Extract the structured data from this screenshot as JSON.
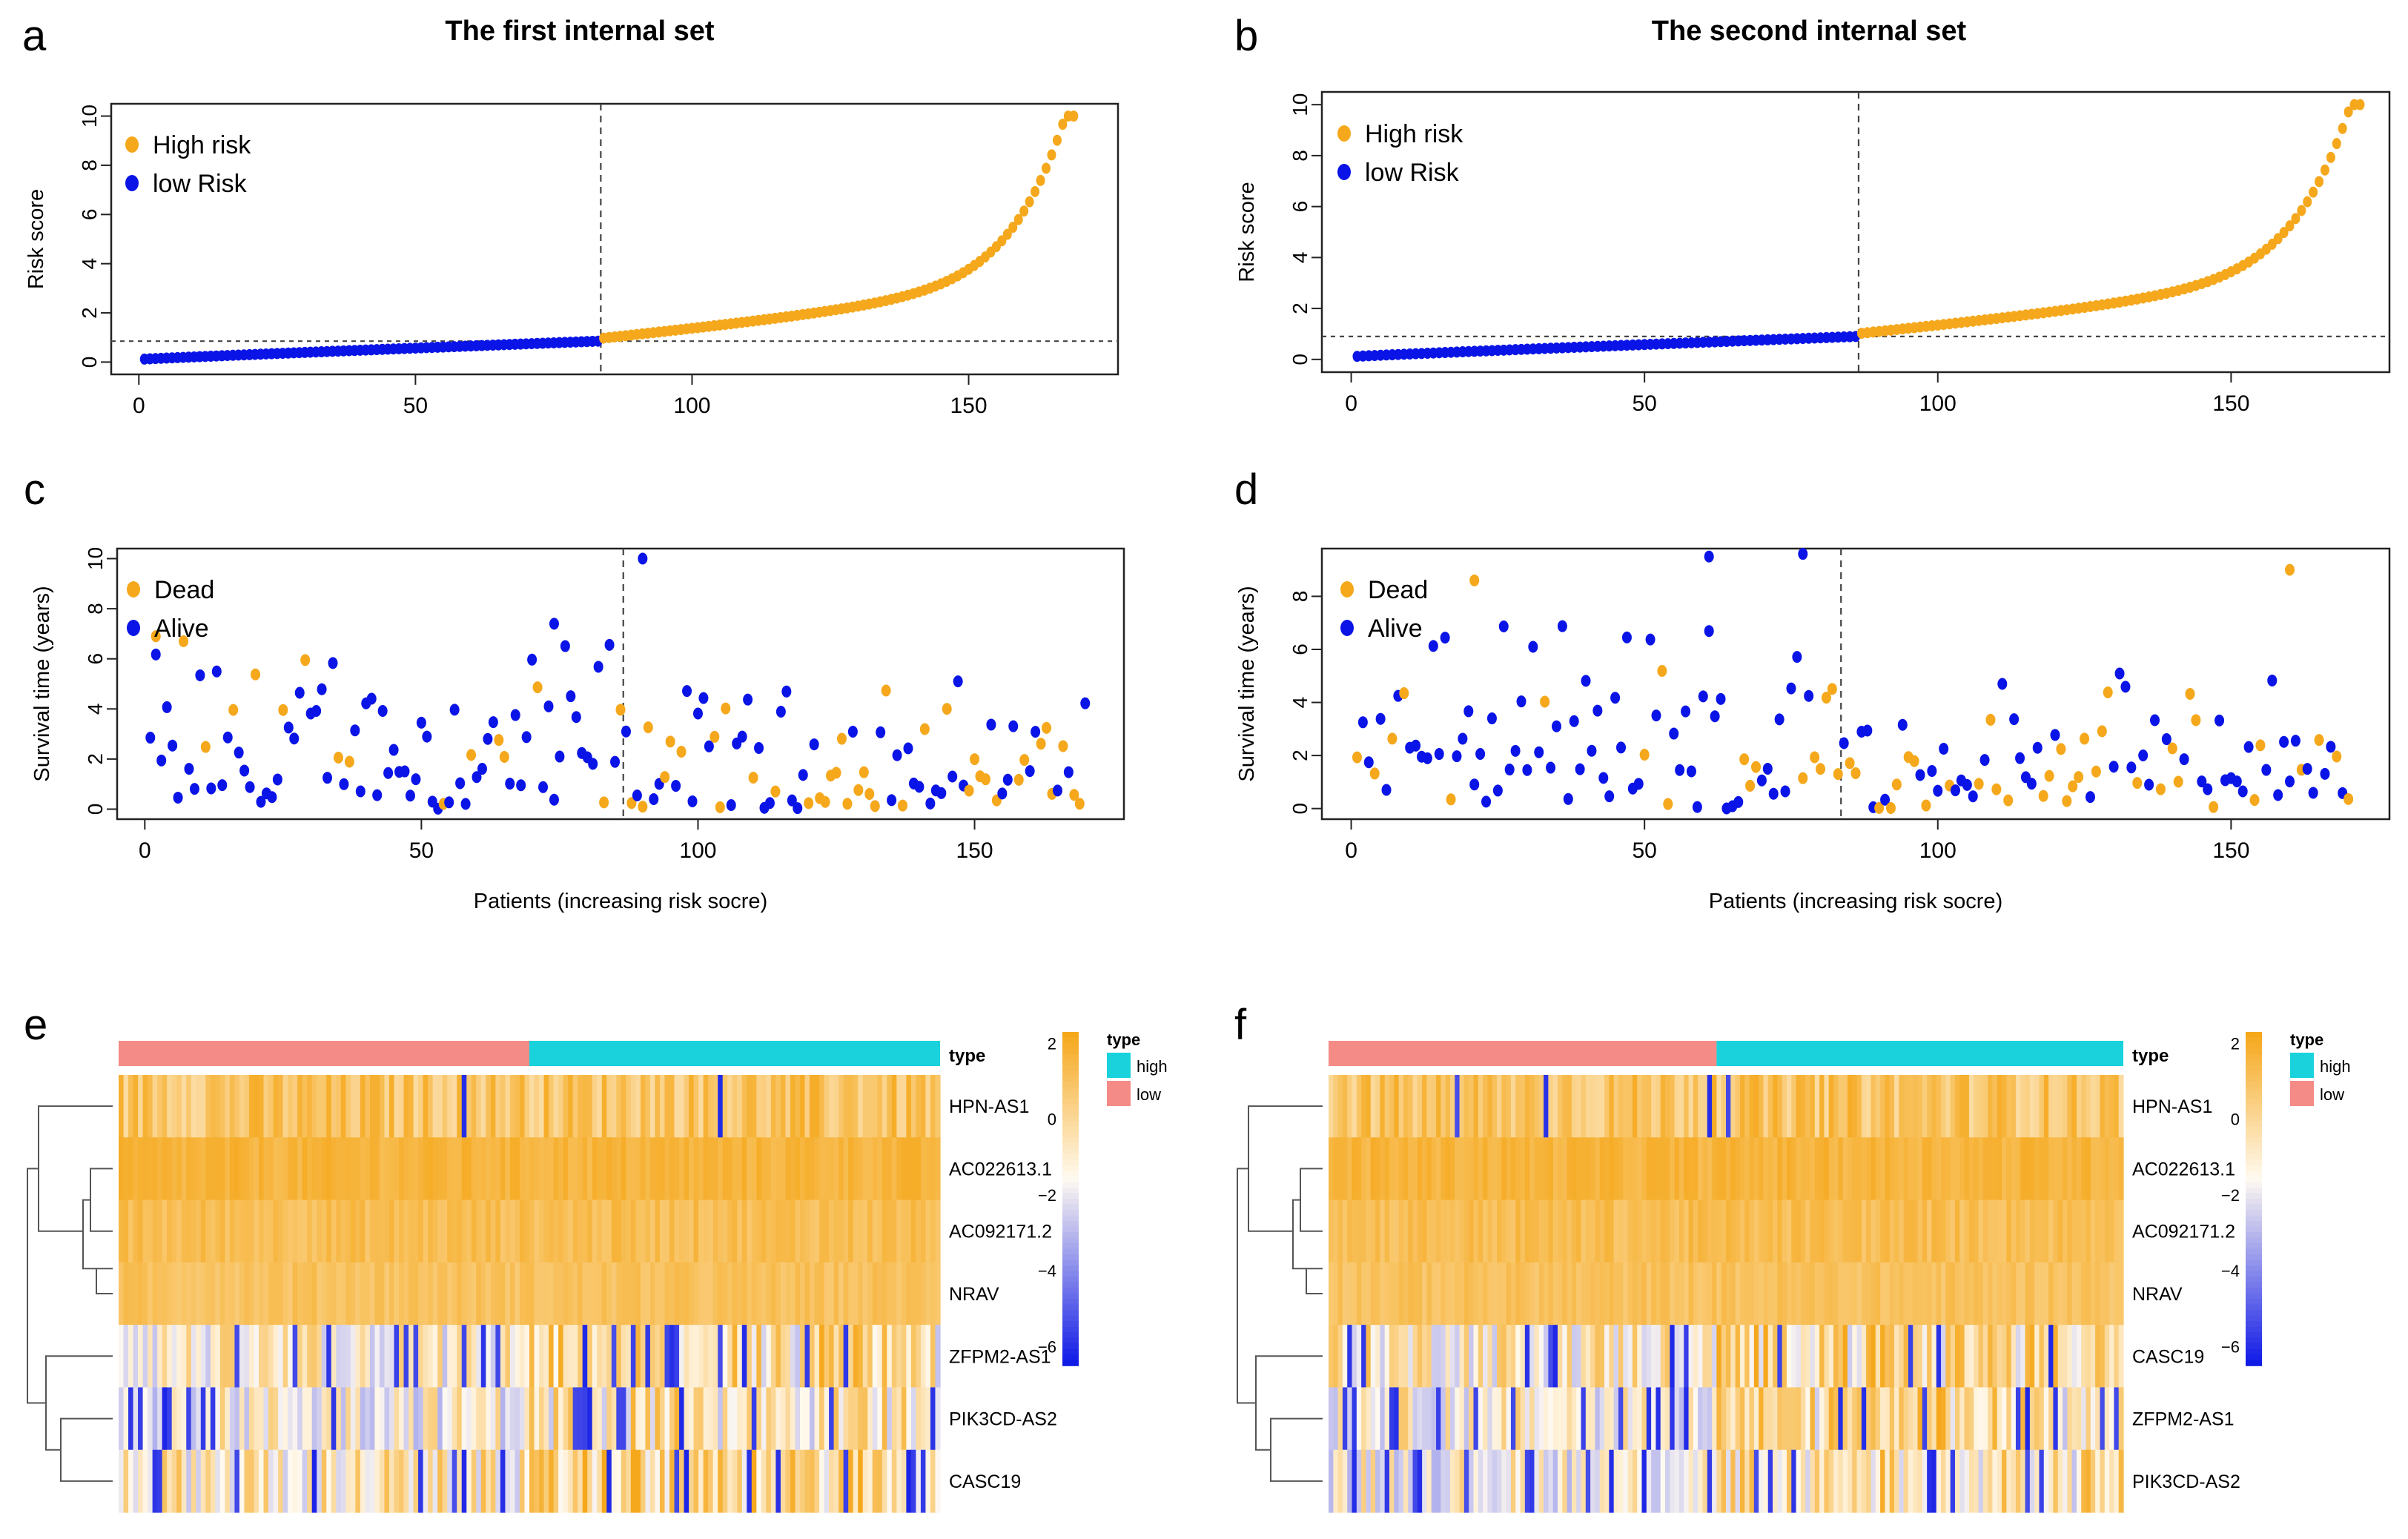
{
  "colors": {
    "high": "#f5a81c",
    "low": "#0a14e6",
    "ann_low": "#f48b86",
    "ann_high": "#19d2dc",
    "grid": "#444444"
  },
  "panels": {
    "a": {
      "letter": "a",
      "title": "The first  internal  set"
    },
    "b": {
      "letter": "b",
      "title": "The second  internal  set"
    },
    "c": {
      "letter": "c"
    },
    "d": {
      "letter": "d"
    },
    "e": {
      "letter": "e"
    },
    "f": {
      "letter": "f"
    }
  },
  "chart_data": [
    {
      "id": "a",
      "type": "scatter",
      "title": "The first  internal  set",
      "ylabel": "Risk score",
      "xlabel": "",
      "xlim": [
        -5,
        177
      ],
      "ylim": [
        -0.5,
        10.5
      ],
      "xticks": [
        "0",
        "50",
        "100",
        "150"
      ],
      "yticks": [
        "0",
        "2",
        "4",
        "6",
        "8",
        "10"
      ],
      "n": 169,
      "cutoff_index": 83,
      "cutoff_value": 0.85,
      "legend": [
        "High risk",
        "low Risk"
      ],
      "series": [
        {
          "name": "low Risk",
          "x_range": [
            1,
            83
          ],
          "y_range": [
            0.1,
            0.85
          ]
        },
        {
          "name": "High risk",
          "x_range": [
            84,
            169
          ],
          "y_range": [
            0.9,
            10.0
          ]
        }
      ]
    },
    {
      "id": "b",
      "type": "scatter",
      "title": "The second  internal  set",
      "ylabel": "Risk score",
      "xlabel": "",
      "xlim": [
        -5,
        177
      ],
      "ylim": [
        -0.5,
        10.5
      ],
      "xticks": [
        "0",
        "50",
        "100",
        "150"
      ],
      "yticks": [
        "0",
        "2",
        "4",
        "6",
        "8",
        "10"
      ],
      "n": 172,
      "cutoff_index": 86,
      "cutoff_value": 0.9,
      "legend": [
        "High risk",
        "low Risk"
      ],
      "series": [
        {
          "name": "low Risk",
          "x_range": [
            1,
            86
          ],
          "y_range": [
            0.1,
            0.9
          ]
        },
        {
          "name": "High risk",
          "x_range": [
            87,
            172
          ],
          "y_range": [
            0.95,
            10.0
          ]
        }
      ]
    },
    {
      "id": "c",
      "type": "scatter",
      "ylabel": "Survival time (years)",
      "xlabel": "Patients (increasing risk socre)",
      "xlim": [
        -5,
        177
      ],
      "ylim": [
        -0.4,
        10.4
      ],
      "xticks": [
        "0",
        "50",
        "100",
        "150"
      ],
      "yticks": [
        "0",
        "2",
        "4",
        "6",
        "8",
        "10"
      ],
      "cutoff_index": 86,
      "legend": [
        "Dead",
        "Alive"
      ],
      "series": [
        {
          "name": "Dead"
        },
        {
          "name": "Alive"
        }
      ]
    },
    {
      "id": "d",
      "type": "scatter",
      "ylabel": "Survival time (years)",
      "xlabel": "Patients (increasing risk socre)",
      "xlim": [
        -5,
        177
      ],
      "ylim": [
        -0.4,
        9.8
      ],
      "xticks": [
        "0",
        "50",
        "100",
        "150"
      ],
      "yticks": [
        "0",
        "2",
        "4",
        "6",
        "8"
      ],
      "cutoff_index": 83,
      "legend": [
        "Dead",
        "Alive"
      ],
      "series": [
        {
          "name": "Dead"
        },
        {
          "name": "Alive"
        }
      ]
    },
    {
      "id": "e",
      "type": "heatmap",
      "rows": [
        "HPN-AS1",
        "AC022613.1",
        "AC092171.2",
        "NRAV",
        "ZFPM2-AS1",
        "PIK3CD-AS2",
        "CASC19"
      ],
      "annotation_label": "type",
      "colorbar_ticks": [
        "2",
        "0",
        "−2",
        "−4",
        "−6"
      ],
      "colorbar_range": [
        -6.5,
        2.3
      ],
      "legend_title": "type",
      "legend": [
        "high",
        "low"
      ],
      "low_fraction": 0.5
    },
    {
      "id": "f",
      "type": "heatmap",
      "rows": [
        "HPN-AS1",
        "AC022613.1",
        "AC092171.2",
        "NRAV",
        "CASC19",
        "ZFPM2-AS1",
        "PIK3CD-AS2"
      ],
      "annotation_label": "type",
      "colorbar_ticks": [
        "2",
        "0",
        "−2",
        "−4",
        "−6"
      ],
      "colorbar_range": [
        -6.5,
        2.3
      ],
      "legend_title": "type",
      "legend": [
        "high",
        "low"
      ],
      "low_fraction": 0.49
    }
  ]
}
